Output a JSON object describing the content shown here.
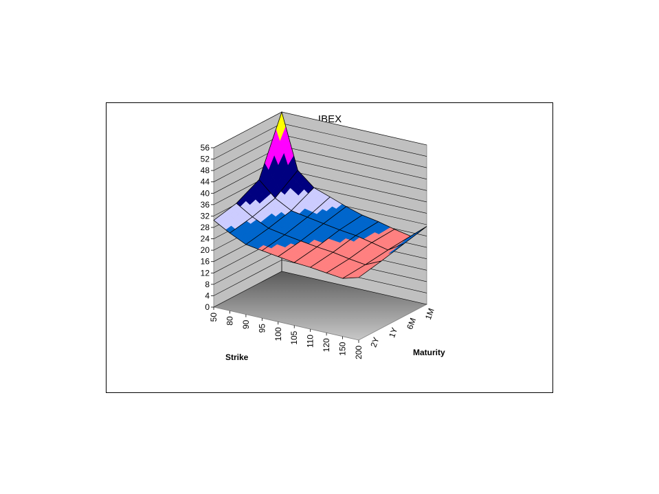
{
  "chart_data": {
    "type": "surface",
    "title": "IBEX",
    "xlabel": "Strike",
    "zlabel": "Maturity",
    "ylabel": "",
    "ylim": [
      0,
      56
    ],
    "ytick_step": 4,
    "y_ticks": [
      "0",
      "4",
      "8",
      "12",
      "16",
      "20",
      "24",
      "28",
      "32",
      "36",
      "40",
      "44",
      "48",
      "52",
      "56"
    ],
    "strike_ticks": [
      "50",
      "80",
      "90",
      "95",
      "100",
      "105",
      "110",
      "120",
      "150",
      "200"
    ],
    "maturity_ticks": [
      "2Y",
      "1Y",
      "6M",
      "1M"
    ],
    "strikes": [
      50,
      80,
      90,
      95,
      100,
      105,
      110,
      120,
      150,
      200
    ],
    "maturities": [
      "2Y",
      "1Y",
      "6M",
      "1M"
    ],
    "surface_rows_by_maturity": [
      [
        30.5,
        27.3,
        24.6,
        23.7,
        22.9,
        22.1,
        21.7,
        21.0,
        20.4,
        22.0
      ],
      [
        32.3,
        28.8,
        26.1,
        25.1,
        24.2,
        23.4,
        22.8,
        21.8,
        21.0,
        23.6
      ],
      [
        36.4,
        31.2,
        28.1,
        27.1,
        26.1,
        25.2,
        24.5,
        23.3,
        22.0,
        25.5
      ],
      [
        56.0,
        36.8,
        32.0,
        30.0,
        27.9,
        26.2,
        25.2,
        23.8,
        22.7,
        27.4
      ]
    ],
    "color_bands": [
      {
        "range": [
          0,
          4
        ],
        "color": "#9999FF"
      },
      {
        "range": [
          4,
          8
        ],
        "color": "#993366"
      },
      {
        "range": [
          8,
          12
        ],
        "color": "#FFFFCC"
      },
      {
        "range": [
          12,
          16
        ],
        "color": "#CCFFFF"
      },
      {
        "range": [
          16,
          20
        ],
        "color": "#660066"
      },
      {
        "range": [
          20,
          24
        ],
        "color": "#FF8080"
      },
      {
        "range": [
          24,
          28
        ],
        "color": "#0066CC"
      },
      {
        "range": [
          28,
          32
        ],
        "color": "#CCCCFF"
      },
      {
        "range": [
          32,
          36
        ],
        "color": "#000080"
      },
      {
        "range": [
          36,
          40
        ],
        "color": "#000080"
      },
      {
        "range": [
          40,
          44
        ],
        "color": "#FF00FF"
      },
      {
        "range": [
          44,
          48
        ],
        "color": "#FF00FF"
      },
      {
        "range": [
          48,
          52
        ],
        "color": "#FFFF00"
      },
      {
        "range": [
          52,
          56
        ],
        "color": "#00FFFF"
      },
      {
        "range": [
          56,
          60
        ],
        "color": "#800080"
      }
    ],
    "walls_color": "#c0c0c0",
    "floor_gradient": [
      "#5a5a5a",
      "#c8c8c8"
    ],
    "grid": true,
    "legend": "none"
  }
}
